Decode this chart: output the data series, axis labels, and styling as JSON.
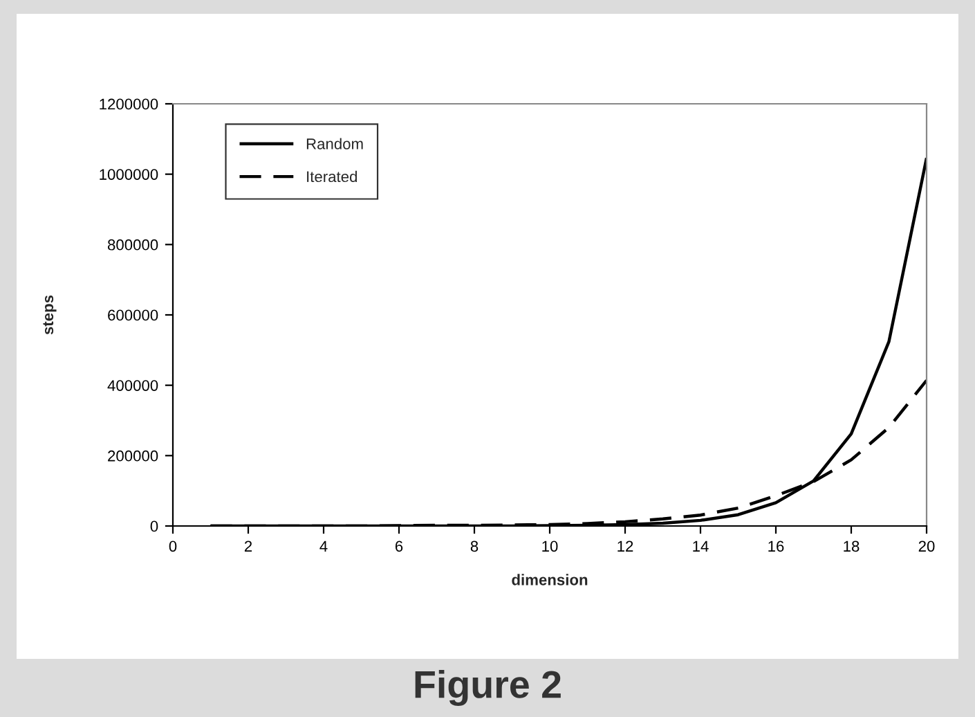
{
  "chart_data": {
    "type": "line",
    "xlabel": "dimension",
    "ylabel": "steps",
    "x": [
      1,
      2,
      3,
      4,
      5,
      6,
      7,
      8,
      9,
      10,
      11,
      12,
      13,
      14,
      15,
      16,
      17,
      18,
      19,
      20
    ],
    "series": [
      {
        "name": "Random",
        "color": "#000000",
        "line_style": "solid",
        "values": [
          0,
          0,
          0,
          0,
          0,
          0,
          0,
          0,
          0,
          1000,
          2000,
          4000,
          8000,
          16000,
          32000,
          66000,
          128000,
          262000,
          524000,
          1046000
        ]
      },
      {
        "name": "Iterated",
        "color": "#000000",
        "line_style": "dashed",
        "values": [
          0,
          0,
          0,
          0,
          0,
          1000,
          2000,
          2000,
          3000,
          4000,
          7000,
          12000,
          20000,
          31000,
          51000,
          86000,
          126000,
          188000,
          280000,
          414000
        ]
      }
    ],
    "xlim": [
      0,
      20
    ],
    "xticks": [
      0,
      2,
      4,
      6,
      8,
      10,
      12,
      14,
      16,
      18,
      20
    ],
    "ylim": [
      0,
      1200000
    ],
    "yticks": [
      0,
      200000,
      400000,
      600000,
      800000,
      1000000,
      1200000
    ],
    "grid": false,
    "legend": "top left",
    "marker": "none",
    "annotations": [
      "Figure 2"
    ]
  }
}
